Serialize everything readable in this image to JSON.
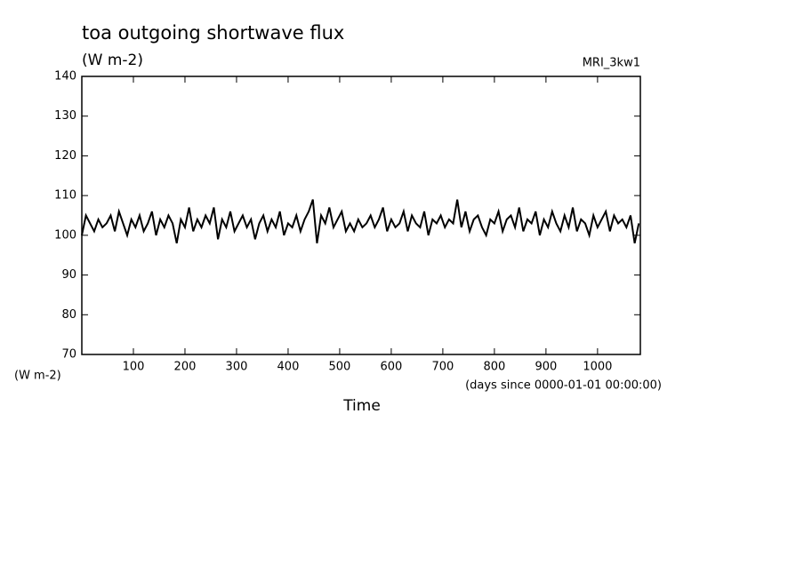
{
  "chart_data": {
    "type": "line",
    "title": "toa outgoing shortwave flux",
    "units": "(W m-2)",
    "dataset": "MRI_3kw1",
    "y_label": "(W m-2)",
    "x_units": "(days since 0000-01-01 00:00:00)",
    "x_label": "Time",
    "xlim": [
      0,
      1083
    ],
    "xticks": [
      100,
      200,
      300,
      400,
      500,
      600,
      700,
      800,
      900,
      1000
    ],
    "ylim": [
      70,
      140
    ],
    "yticks": [
      70,
      80,
      90,
      100,
      110,
      120,
      130,
      140
    ],
    "x": [
      0,
      8,
      16,
      24,
      32,
      40,
      48,
      56,
      64,
      72,
      80,
      88,
      96,
      104,
      112,
      120,
      128,
      136,
      144,
      152,
      160,
      168,
      176,
      184,
      192,
      200,
      208,
      216,
      224,
      232,
      240,
      248,
      256,
      264,
      272,
      280,
      288,
      296,
      304,
      312,
      320,
      328,
      336,
      344,
      352,
      360,
      368,
      376,
      384,
      392,
      400,
      408,
      416,
      424,
      432,
      440,
      448,
      456,
      464,
      472,
      480,
      488,
      496,
      504,
      512,
      520,
      528,
      536,
      544,
      552,
      560,
      568,
      576,
      584,
      592,
      600,
      608,
      616,
      624,
      632,
      640,
      648,
      656,
      664,
      672,
      680,
      688,
      696,
      704,
      712,
      720,
      728,
      736,
      744,
      752,
      760,
      768,
      776,
      784,
      792,
      800,
      808,
      816,
      824,
      832,
      840,
      848,
      856,
      864,
      872,
      880,
      888,
      896,
      904,
      912,
      920,
      928,
      936,
      944,
      952,
      960,
      968,
      976,
      984,
      992,
      1000,
      1008,
      1016,
      1024,
      1032,
      1040,
      1048,
      1056,
      1064,
      1072,
      1080
    ],
    "series": [
      {
        "color": "#000000",
        "values": [
          100,
          105,
          103,
          101,
          104,
          102,
          103,
          105,
          101,
          106,
          103,
          100,
          104,
          102,
          105,
          101,
          103,
          106,
          100,
          104,
          102,
          105,
          103,
          98,
          104,
          102,
          107,
          101,
          104,
          102,
          105,
          103,
          107,
          99,
          104,
          102,
          106,
          101,
          103,
          105,
          102,
          104,
          99,
          103,
          105,
          101,
          104,
          102,
          106,
          100,
          103,
          102,
          105,
          101,
          104,
          106,
          109,
          98,
          105,
          103,
          107,
          102,
          104,
          106,
          101,
          103,
          101,
          104,
          102,
          103,
          105,
          102,
          104,
          107,
          101,
          104,
          102,
          103,
          106,
          101,
          105,
          103,
          102,
          106,
          100,
          104,
          103,
          105,
          102,
          104,
          103,
          109,
          102,
          106,
          101,
          104,
          105,
          102,
          100,
          104,
          103,
          106,
          101,
          104,
          105,
          102,
          107,
          101,
          104,
          103,
          106,
          100,
          104,
          102,
          106,
          103,
          101,
          105,
          102,
          107,
          101,
          104,
          103,
          100,
          105,
          102,
          104,
          106,
          101,
          105,
          103,
          104,
          102,
          105,
          98,
          103
        ]
      }
    ]
  }
}
